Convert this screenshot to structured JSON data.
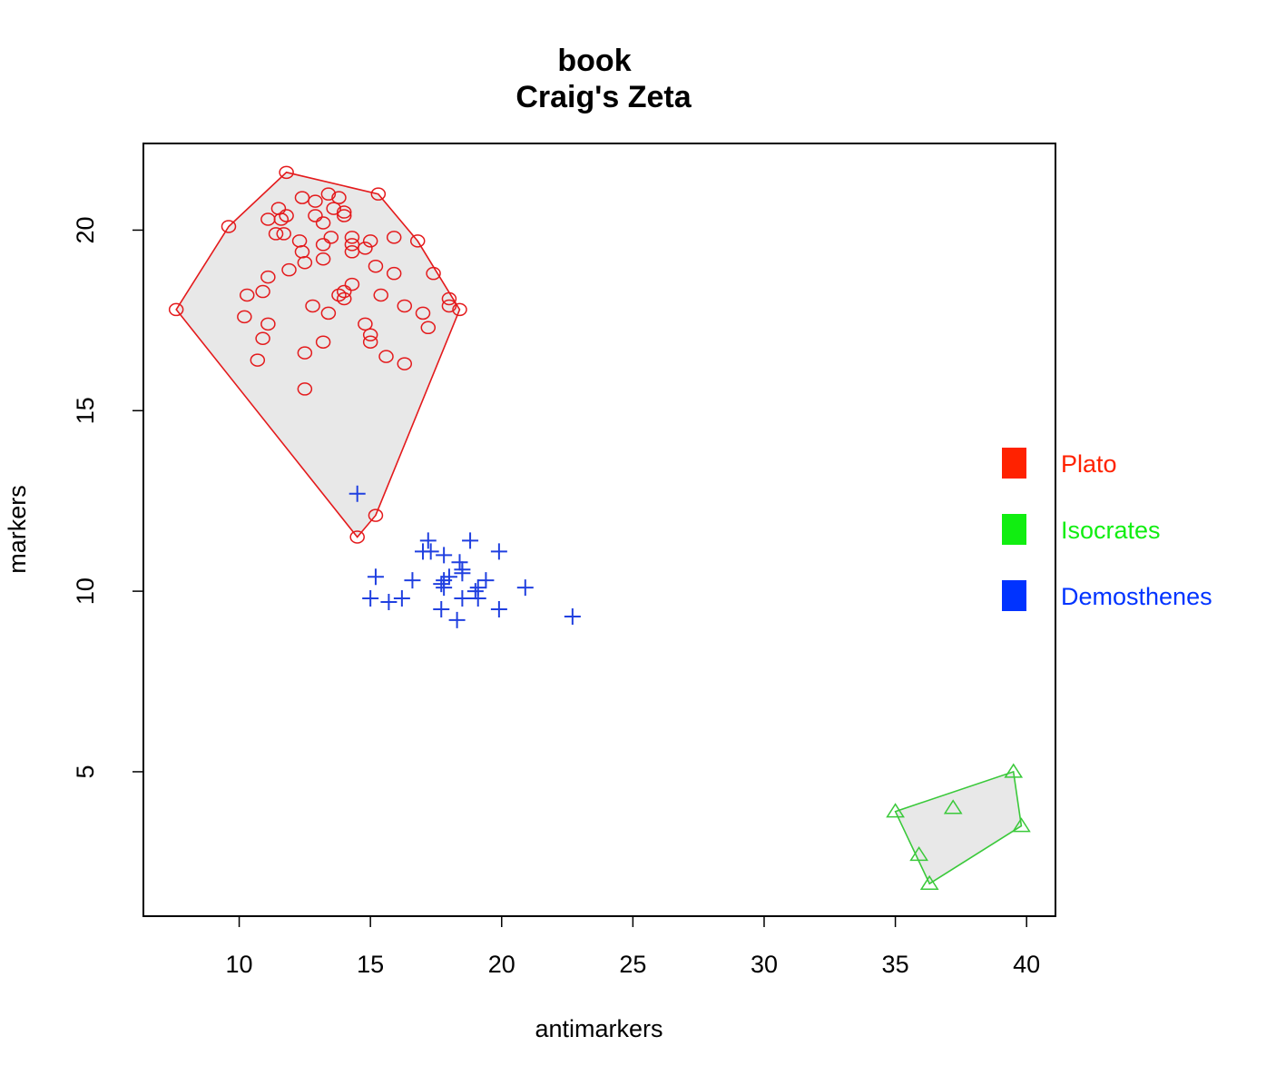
{
  "chart_data": {
    "type": "scatter",
    "title_line1": "book",
    "title_line2": "Craig's Zeta",
    "xlabel": "antimarkers",
    "ylabel": "markers",
    "xlim": [
      6.35,
      41.1
    ],
    "ylim": [
      1.0,
      22.4
    ],
    "xticks": [
      10,
      15,
      20,
      25,
      30,
      35,
      40
    ],
    "yticks": [
      5,
      10,
      15,
      20
    ],
    "grid": false,
    "legend_position": "right",
    "series": [
      {
        "name": "Plato",
        "color": "#e41a1c",
        "marker": "circle",
        "hull": true,
        "points": [
          [
            7.6,
            17.8
          ],
          [
            9.6,
            20.1
          ],
          [
            11.8,
            21.6
          ],
          [
            15.3,
            21.0
          ],
          [
            18.4,
            17.8
          ],
          [
            14.5,
            11.5
          ],
          [
            15.2,
            12.1
          ],
          [
            12.4,
            20.9
          ],
          [
            13.4,
            21.0
          ],
          [
            13.8,
            20.9
          ],
          [
            12.9,
            20.8
          ],
          [
            13.6,
            20.6
          ],
          [
            14.0,
            20.5
          ],
          [
            14.0,
            20.4
          ],
          [
            11.5,
            20.6
          ],
          [
            11.8,
            20.4
          ],
          [
            11.1,
            20.3
          ],
          [
            11.6,
            20.3
          ],
          [
            12.9,
            20.4
          ],
          [
            13.2,
            20.2
          ],
          [
            11.4,
            19.9
          ],
          [
            11.7,
            19.9
          ],
          [
            13.5,
            19.8
          ],
          [
            14.3,
            19.8
          ],
          [
            15.9,
            19.8
          ],
          [
            16.8,
            19.7
          ],
          [
            12.3,
            19.7
          ],
          [
            14.3,
            19.6
          ],
          [
            15.0,
            19.7
          ],
          [
            13.2,
            19.6
          ],
          [
            14.8,
            19.5
          ],
          [
            12.4,
            19.4
          ],
          [
            14.3,
            19.4
          ],
          [
            12.5,
            19.1
          ],
          [
            13.2,
            19.2
          ],
          [
            11.9,
            18.9
          ],
          [
            15.2,
            19.0
          ],
          [
            15.9,
            18.8
          ],
          [
            17.4,
            18.8
          ],
          [
            11.1,
            18.7
          ],
          [
            14.3,
            18.5
          ],
          [
            10.9,
            18.3
          ],
          [
            10.3,
            18.2
          ],
          [
            13.8,
            18.2
          ],
          [
            14.0,
            18.3
          ],
          [
            15.4,
            18.2
          ],
          [
            14.0,
            18.1
          ],
          [
            12.8,
            17.9
          ],
          [
            16.3,
            17.9
          ],
          [
            18.0,
            18.1
          ],
          [
            18.0,
            17.9
          ],
          [
            10.2,
            17.6
          ],
          [
            13.4,
            17.7
          ],
          [
            17.0,
            17.7
          ],
          [
            11.1,
            17.4
          ],
          [
            14.8,
            17.4
          ],
          [
            17.2,
            17.3
          ],
          [
            10.9,
            17.0
          ],
          [
            15.0,
            17.1
          ],
          [
            15.0,
            16.9
          ],
          [
            13.2,
            16.9
          ],
          [
            12.5,
            16.6
          ],
          [
            15.6,
            16.5
          ],
          [
            10.7,
            16.4
          ],
          [
            16.3,
            16.3
          ],
          [
            12.5,
            15.6
          ]
        ]
      },
      {
        "name": "Isocrates",
        "color": "#3ac93a",
        "marker": "triangle",
        "hull": true,
        "points": [
          [
            35.0,
            3.9
          ],
          [
            37.2,
            4.0
          ],
          [
            39.5,
            5.0
          ],
          [
            39.8,
            3.5
          ],
          [
            35.9,
            2.7
          ],
          [
            36.3,
            1.9
          ]
        ]
      },
      {
        "name": "Demosthenes",
        "color": "#2040e0",
        "marker": "plus",
        "hull": false,
        "points": [
          [
            14.5,
            12.7
          ],
          [
            17.2,
            11.4
          ],
          [
            17.0,
            11.1
          ],
          [
            17.3,
            11.1
          ],
          [
            17.8,
            11.0
          ],
          [
            18.8,
            11.4
          ],
          [
            19.9,
            11.1
          ],
          [
            18.4,
            10.8
          ],
          [
            18.5,
            10.6
          ],
          [
            15.2,
            10.4
          ],
          [
            16.6,
            10.3
          ],
          [
            17.8,
            10.3
          ],
          [
            18.0,
            10.4
          ],
          [
            18.5,
            10.5
          ],
          [
            17.7,
            10.2
          ],
          [
            17.8,
            10.1
          ],
          [
            19.4,
            10.3
          ],
          [
            19.1,
            10.1
          ],
          [
            20.9,
            10.1
          ],
          [
            15.0,
            9.8
          ],
          [
            15.7,
            9.7
          ],
          [
            16.2,
            9.8
          ],
          [
            18.5,
            9.8
          ],
          [
            19.1,
            9.8
          ],
          [
            19.0,
            10.0
          ],
          [
            17.7,
            9.5
          ],
          [
            19.9,
            9.5
          ],
          [
            18.3,
            9.2
          ],
          [
            22.7,
            9.3
          ]
        ]
      }
    ]
  }
}
